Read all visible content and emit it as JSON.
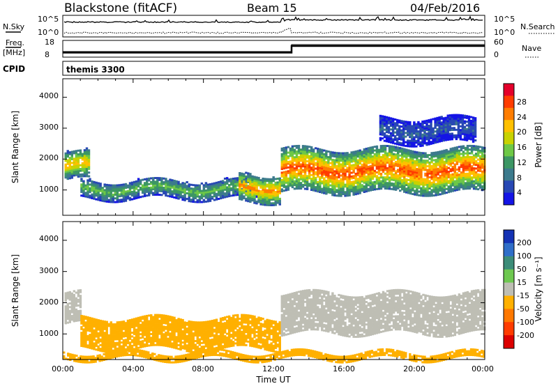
{
  "header": {
    "title": "Blackstone (fitACF)",
    "beam": "Beam 15",
    "date": "04/Feb/2016"
  },
  "status_panels": {
    "nsky_label": "N.Sky",
    "nsky_ticks": [
      "10^5",
      "10^0"
    ],
    "nsearch_label": "N.Search",
    "nsearch_ticks": [
      "10^5",
      "10^0"
    ],
    "freq_label_line1": "Freq.",
    "freq_label_line2": "[MHz]",
    "freq_ticks": [
      "18",
      "8"
    ],
    "nave_label": "Nave",
    "nave_ticks": [
      "60",
      "0"
    ],
    "cpid_label": "CPID",
    "cpid_value": "themis 3300"
  },
  "colorbars": {
    "power": {
      "label": "Power [dB]",
      "ticks": [
        "28",
        "24",
        "20",
        "16",
        "12",
        "8",
        "4"
      ],
      "colors": [
        "#e4002a",
        "#ff3c00",
        "#ff7d00",
        "#ffc000",
        "#c8d200",
        "#6ec846",
        "#3c9664",
        "#3c7a8c",
        "#2848b4",
        "#1414e6"
      ]
    },
    "velocity": {
      "label": "Velocity [m s⁻¹]",
      "ticks": [
        "200",
        "100",
        "50",
        "15",
        "-15",
        "-50",
        "-100",
        "-200"
      ],
      "colors": [
        "#1432b4",
        "#2f6ec8",
        "#3c8c78",
        "#6ec850",
        "#bebeb4",
        "#ffb000",
        "#ff7800",
        "#ff3c00",
        "#dc0000"
      ]
    }
  },
  "chart_data": [
    {
      "type": "heatmap",
      "name": "Power",
      "ylabel": "Slant Range [km]",
      "xlabel": "",
      "x_unit": "hours UT",
      "xlim": [
        0,
        24
      ],
      "ylim": [
        180,
        4600
      ],
      "yticks": [
        "1000",
        "2000",
        "3000",
        "4000"
      ],
      "zlabel": "Power [dB]",
      "zlim": [
        0,
        32
      ],
      "regions": [
        {
          "t0": 0.1,
          "t1": 1.5,
          "r0": 1300,
          "r1": 2200,
          "level": 22
        },
        {
          "t0": 1.0,
          "t1": 11.0,
          "r0": 700,
          "r1": 1300,
          "level": 14
        },
        {
          "t0": 10.0,
          "t1": 12.3,
          "r0": 600,
          "r1": 1500,
          "level": 24
        },
        {
          "t0": 12.4,
          "t1": 24.0,
          "r0": 900,
          "r1": 2300,
          "level": 27
        },
        {
          "t0": 18.0,
          "t1": 23.5,
          "r0": 2500,
          "r1": 3300,
          "level": 6
        }
      ]
    },
    {
      "type": "heatmap",
      "name": "Velocity",
      "ylabel": "Slant Range [km]",
      "xlabel": "Time UT",
      "x_unit": "hours UT",
      "xlim": [
        0,
        24
      ],
      "ylim": [
        180,
        4600
      ],
      "xticks": [
        "00:00",
        "04:00",
        "08:00",
        "12:00",
        "16:00",
        "20:00",
        "00:00"
      ],
      "yticks": [
        "1000",
        "2000",
        "3000",
        "4000"
      ],
      "zlabel": "Velocity [m s⁻¹]",
      "zlim": [
        -200,
        200
      ],
      "regions": [
        {
          "t0": 0.1,
          "t1": 1.0,
          "r0": 1300,
          "r1": 2300,
          "velocity": 0
        },
        {
          "t0": 1.0,
          "t1": 12.3,
          "r0": 500,
          "r1": 1500,
          "velocity": -40
        },
        {
          "t0": 12.4,
          "t1": 24.0,
          "r0": 1000,
          "r1": 2300,
          "velocity": 0
        },
        {
          "t0": 0.0,
          "t1": 24.0,
          "r0": 180,
          "r1": 400,
          "velocity": -40
        }
      ]
    }
  ]
}
